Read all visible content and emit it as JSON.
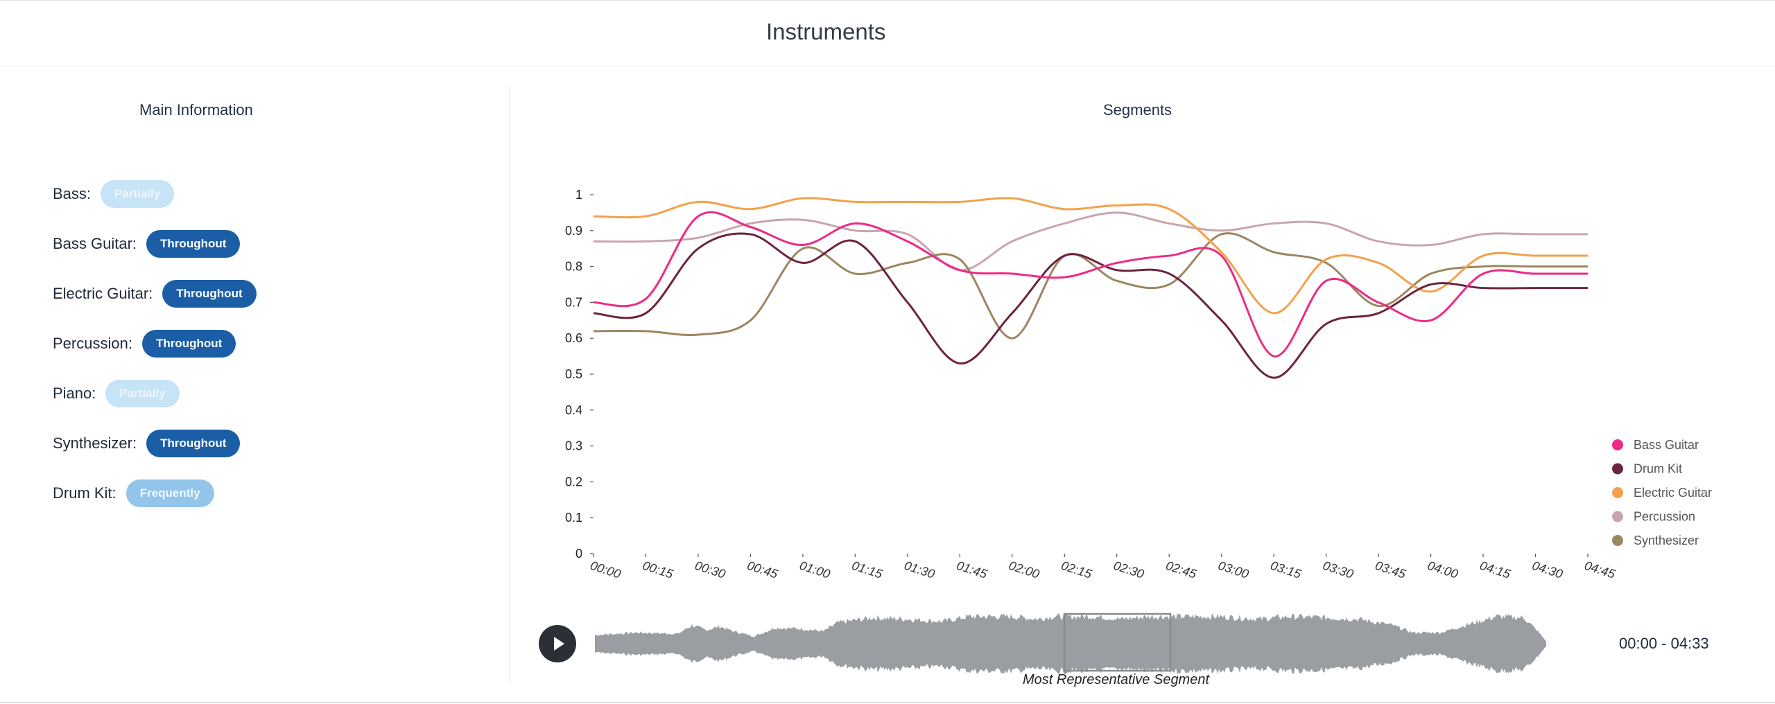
{
  "header": {
    "title": "Instruments"
  },
  "main_info": {
    "title": "Main Information",
    "rows": [
      {
        "label": "Bass:",
        "badge": "Partially",
        "status": "partially"
      },
      {
        "label": "Bass Guitar:",
        "badge": "Throughout",
        "status": "throughout"
      },
      {
        "label": "Electric Guitar:",
        "badge": "Throughout",
        "status": "throughout"
      },
      {
        "label": "Percussion:",
        "badge": "Throughout",
        "status": "throughout"
      },
      {
        "label": "Piano:",
        "badge": "Partially",
        "status": "partially"
      },
      {
        "label": "Synthesizer:",
        "badge": "Throughout",
        "status": "throughout"
      },
      {
        "label": "Drum Kit:",
        "badge": "Frequently",
        "status": "frequently"
      }
    ]
  },
  "segments": {
    "title": "Segments",
    "time_range": "00:00 - 04:33",
    "segment_caption": "Most Representative Segment",
    "play_icon": "play-icon"
  },
  "colors": {
    "bass_guitar": "#ee2a86",
    "drum_kit": "#6b2440",
    "electric_guitar": "#f3a14b",
    "percussion": "#c9a5ad",
    "synthesizer": "#9c8660",
    "waveform": "#9a9da1",
    "badge_throughout": "#1c5ea6",
    "badge_partially": "#c7e3f6",
    "badge_frequently": "#93c4ea"
  },
  "chart_data": {
    "type": "line",
    "x": [
      "00:00",
      "00:15",
      "00:30",
      "00:45",
      "01:00",
      "01:15",
      "01:30",
      "01:45",
      "02:00",
      "02:15",
      "02:30",
      "02:45",
      "03:00",
      "03:15",
      "03:30",
      "03:45",
      "04:00",
      "04:15",
      "04:30",
      "04:45"
    ],
    "ylim": [
      0,
      1
    ],
    "yticks": [
      "0",
      "0.1",
      "0.2",
      "0.3",
      "0.4",
      "0.5",
      "0.6",
      "0.7",
      "0.8",
      "0.9",
      "1"
    ],
    "grid": false,
    "legend": "right",
    "series": [
      {
        "name": "Bass Guitar",
        "color": "#ee2a86",
        "values": [
          0.7,
          0.71,
          0.94,
          0.91,
          0.86,
          0.92,
          0.87,
          0.79,
          0.78,
          0.77,
          0.81,
          0.83,
          0.83,
          0.55,
          0.76,
          0.7,
          0.65,
          0.78,
          0.78,
          0.78
        ]
      },
      {
        "name": "Drum Kit",
        "color": "#6b2440",
        "values": [
          0.67,
          0.67,
          0.85,
          0.89,
          0.81,
          0.87,
          0.7,
          0.53,
          0.67,
          0.83,
          0.79,
          0.78,
          0.65,
          0.49,
          0.64,
          0.67,
          0.75,
          0.74,
          0.74,
          0.74
        ]
      },
      {
        "name": "Electric Guitar",
        "color": "#f3a14b",
        "values": [
          0.94,
          0.94,
          0.98,
          0.96,
          0.99,
          0.98,
          0.98,
          0.98,
          0.99,
          0.96,
          0.97,
          0.96,
          0.84,
          0.67,
          0.82,
          0.81,
          0.73,
          0.83,
          0.83,
          0.83
        ]
      },
      {
        "name": "Percussion",
        "color": "#c9a5ad",
        "values": [
          0.87,
          0.87,
          0.88,
          0.92,
          0.93,
          0.9,
          0.89,
          0.79,
          0.87,
          0.92,
          0.95,
          0.92,
          0.9,
          0.92,
          0.92,
          0.87,
          0.86,
          0.89,
          0.89,
          0.89
        ]
      },
      {
        "name": "Synthesizer",
        "color": "#9c8660",
        "values": [
          0.62,
          0.62,
          0.61,
          0.65,
          0.85,
          0.78,
          0.81,
          0.82,
          0.6,
          0.83,
          0.76,
          0.75,
          0.89,
          0.84,
          0.81,
          0.69,
          0.78,
          0.8,
          0.8,
          0.8
        ]
      }
    ]
  }
}
